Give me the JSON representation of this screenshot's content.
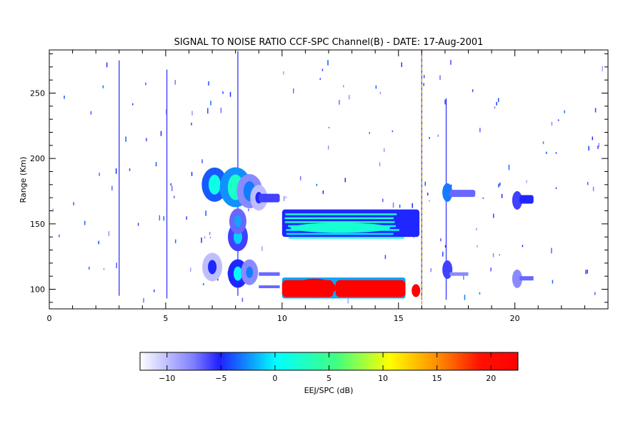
{
  "chart_data": {
    "type": "heatmap",
    "title": "SIGNAL TO NOISE RATIO CCF-SPC Channel(B) - DATE: 17-Aug-2001",
    "xlabel": "",
    "ylabel": "Range (Km)",
    "xlim": [
      0,
      24
    ],
    "ylim": [
      85,
      283
    ],
    "xticks": [
      0,
      5,
      10,
      15,
      20
    ],
    "yticks": [
      100,
      150,
      200,
      250
    ],
    "colorbar": {
      "label": "EEJ/SPC (dB)",
      "range": [
        -12.5,
        22.5
      ],
      "ticks": [
        -10,
        -5,
        0,
        5,
        10,
        15,
        20
      ]
    },
    "regions": [
      {
        "name": "lower-echo",
        "x": [
          10.0,
          15.9
        ],
        "y": [
          92,
          110
        ],
        "value": 22
      },
      {
        "name": "upper-echo",
        "x": [
          10.0,
          15.9
        ],
        "y": [
          138,
          162
        ],
        "value": 2
      },
      {
        "name": "pre-echo-a",
        "x": [
          6.6,
          9.0
        ],
        "y": [
          95,
          190
        ],
        "value": -2
      },
      {
        "name": "post-echo-a",
        "x": [
          16.8,
          18.3
        ],
        "y": [
          100,
          185
        ],
        "value": -4
      },
      {
        "name": "post-echo-b",
        "x": [
          19.5,
          20.8
        ],
        "y": [
          100,
          185
        ],
        "value": -6
      }
    ],
    "markers": [
      {
        "x": 16.0,
        "style": "dashed",
        "color": "#e0a000"
      }
    ]
  }
}
